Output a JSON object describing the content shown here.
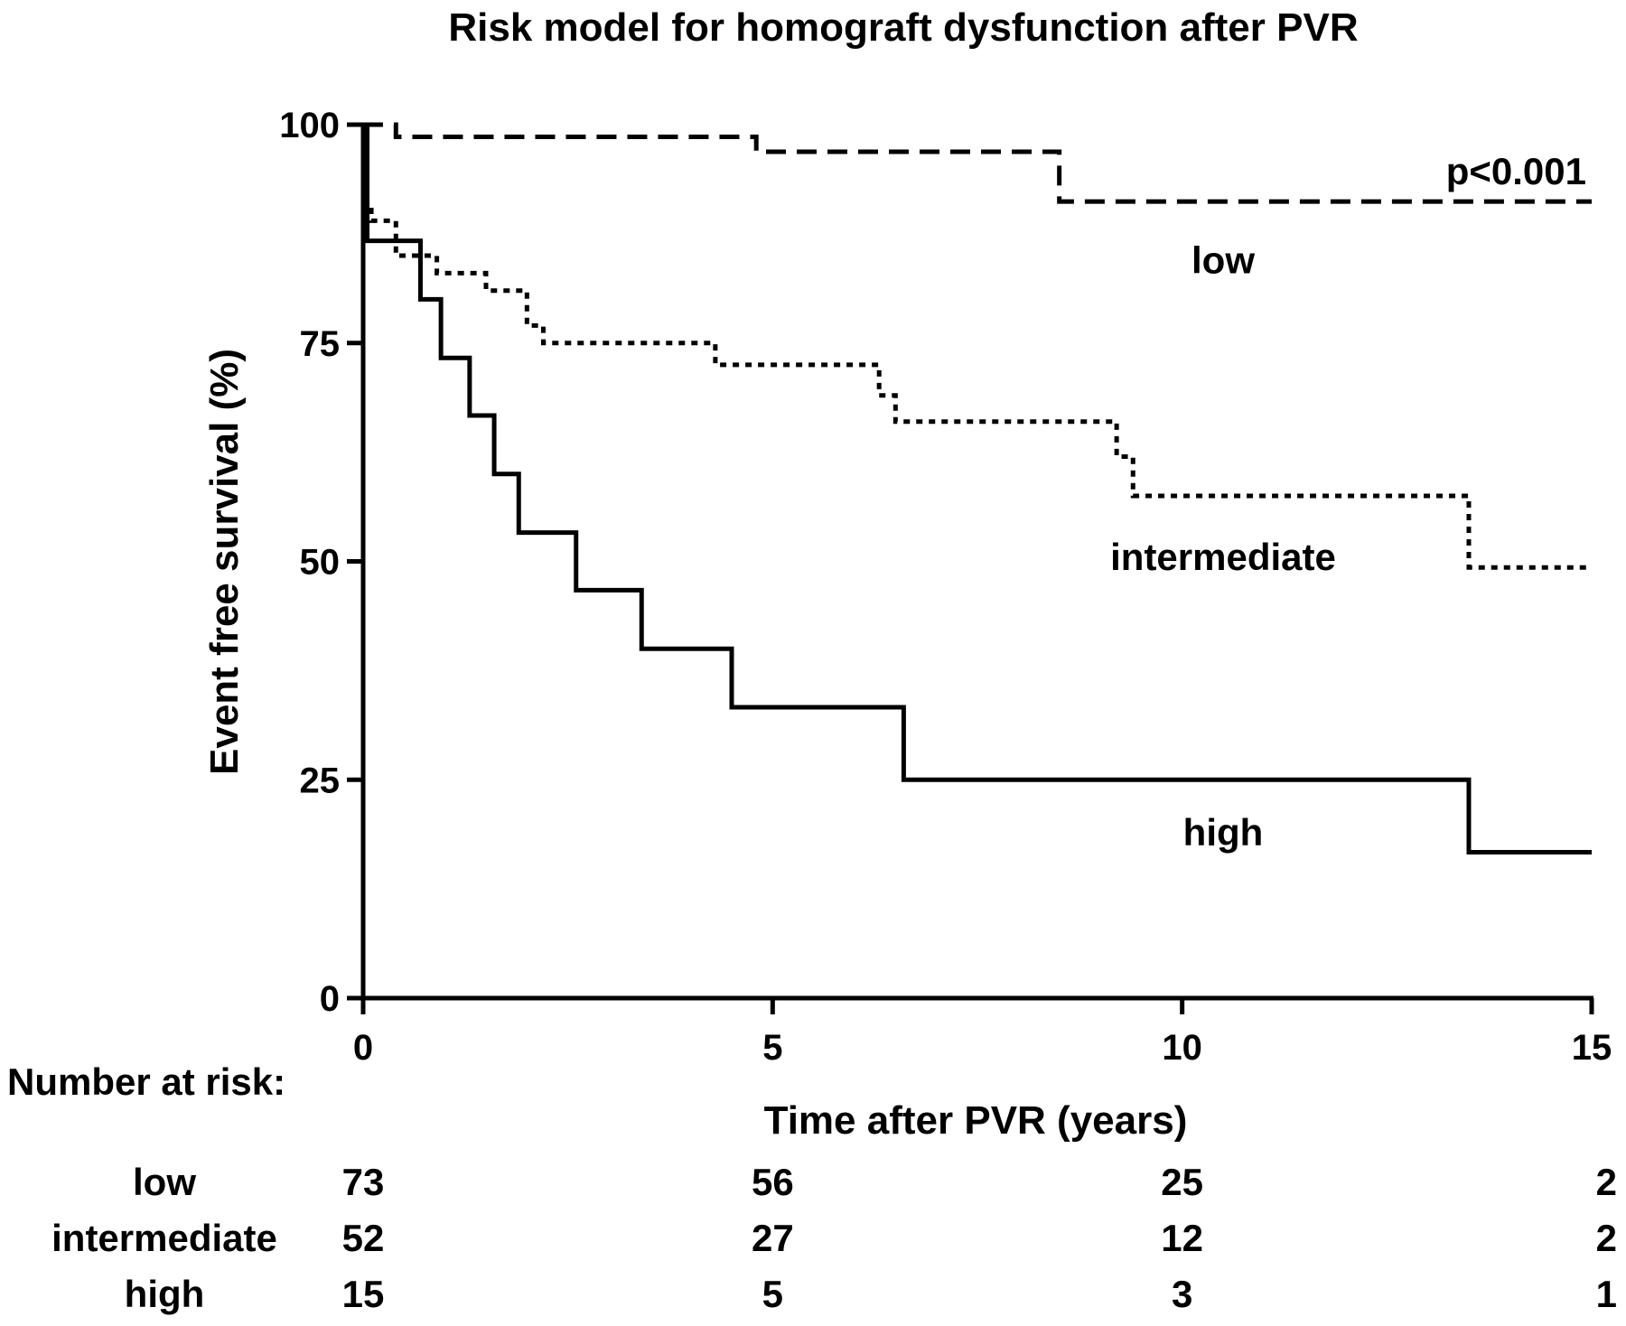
{
  "chart_data": {
    "type": "line",
    "title": "Risk model for homograft dysfunction after PVR",
    "xlabel": "Time after PVR (years)",
    "ylabel": "Event free survival (%)",
    "xlim": [
      0,
      15
    ],
    "ylim": [
      0,
      100
    ],
    "x_ticks": [
      "0",
      "5",
      "10",
      "15"
    ],
    "y_ticks": [
      "0",
      "25",
      "50",
      "75",
      "100"
    ],
    "grid": false,
    "legend": "none",
    "annotations": [
      "p<0.001"
    ],
    "series": [
      {
        "name": "low",
        "line_style": "dashed",
        "color": "#000000",
        "points": [
          [
            0,
            100
          ],
          [
            0.4,
            98.6
          ],
          [
            4.8,
            96.9
          ],
          [
            8.5,
            91.2
          ],
          [
            15,
            91.2
          ]
        ]
      },
      {
        "name": "intermediate",
        "line_style": "dotted",
        "color": "#000000",
        "points": [
          [
            0,
            91
          ],
          [
            0.1,
            89
          ],
          [
            0.4,
            85
          ],
          [
            0.9,
            83
          ],
          [
            1.5,
            81
          ],
          [
            2.0,
            77
          ],
          [
            2.2,
            75
          ],
          [
            4.3,
            72.5
          ],
          [
            6.3,
            69
          ],
          [
            6.5,
            66
          ],
          [
            9.2,
            62
          ],
          [
            9.4,
            57.5
          ],
          [
            13.5,
            49.3
          ],
          [
            15,
            49.3
          ]
        ]
      },
      {
        "name": "high",
        "line_style": "solid",
        "color": "#000000",
        "points": [
          [
            0,
            100
          ],
          [
            0.05,
            86.7
          ],
          [
            0.7,
            80
          ],
          [
            0.95,
            73.3
          ],
          [
            1.3,
            66.7
          ],
          [
            1.6,
            60
          ],
          [
            1.9,
            53.3
          ],
          [
            2.6,
            46.7
          ],
          [
            3.4,
            40
          ],
          [
            4.5,
            33.3
          ],
          [
            6.6,
            25
          ],
          [
            13.5,
            16.7
          ],
          [
            15,
            16.7
          ]
        ]
      }
    ],
    "number_at_risk": {
      "heading": "Number at risk:",
      "columns": [
        0,
        5,
        10,
        15
      ],
      "rows": [
        {
          "label": "low",
          "values": [
            "73",
            "56",
            "25",
            "2"
          ]
        },
        {
          "label": "intermediate",
          "values": [
            "52",
            "27",
            "12",
            "2"
          ]
        },
        {
          "label": "high",
          "values": [
            "15",
            "5",
            "3",
            "1"
          ]
        }
      ]
    }
  }
}
